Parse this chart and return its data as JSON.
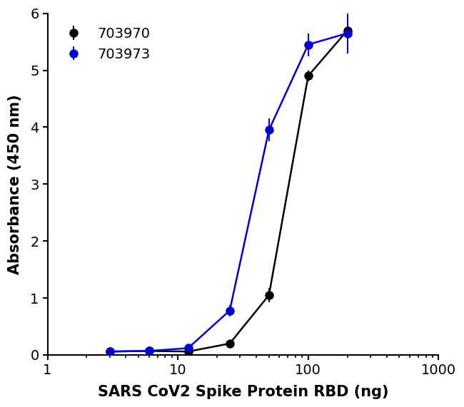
{
  "series": [
    {
      "label": "703970",
      "color": "#000000",
      "x": [
        3,
        6,
        12,
        25,
        50,
        100,
        200
      ],
      "y": [
        0.06,
        0.07,
        0.06,
        0.2,
        1.05,
        4.9,
        5.7
      ],
      "yerr": [
        0.02,
        0.02,
        0.02,
        0.04,
        0.12,
        0.1,
        0.25
      ]
    },
    {
      "label": "703973",
      "color": "#0000cc",
      "x": [
        3,
        6,
        12,
        25,
        50,
        100,
        200
      ],
      "y": [
        0.06,
        0.07,
        0.12,
        0.78,
        3.95,
        5.45,
        5.65
      ],
      "yerr": [
        0.02,
        0.02,
        0.03,
        0.1,
        0.2,
        0.2,
        0.35
      ]
    }
  ],
  "xlabel": "SARS CoV2 Spike Protein RBD (ng)",
  "ylabel": "Absorbance (450 nm)",
  "ylim": [
    0,
    6
  ],
  "yticks": [
    0,
    1,
    2,
    3,
    4,
    5,
    6
  ],
  "xlim": [
    1,
    1000
  ],
  "background_color": "#ffffff",
  "legend_loc": "upper left",
  "marker_size": 9,
  "line_width": 1.8,
  "capsize": 4,
  "elinewidth": 1.4
}
